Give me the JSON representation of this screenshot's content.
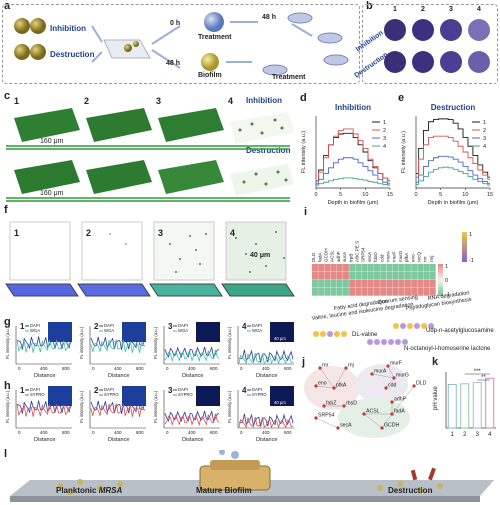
{
  "panel_labels": [
    "a",
    "b",
    "c",
    "d",
    "e",
    "f",
    "g",
    "h",
    "i",
    "j",
    "k",
    "l"
  ],
  "a": {
    "inhibition": "Inhibition",
    "destruction": "Destruction",
    "t0": "0 h",
    "t48a": "48 h",
    "t48b": "48 h",
    "treatment1": "Treatment",
    "biofilm": "Biofilm",
    "treatment2": "Treatment"
  },
  "b": {
    "cols": [
      "1",
      "2",
      "3",
      "4"
    ],
    "row1": "Inhibition",
    "row2": "Destruction"
  },
  "c": {
    "nums": [
      "1",
      "2",
      "3",
      "4"
    ],
    "inhibition": "Inhibition",
    "destruction": "Destruction",
    "scale1": "160 μm",
    "scale2": "160 μm"
  },
  "f": {
    "nums": [
      "1",
      "2",
      "3",
      "4"
    ],
    "scale": "40 μm"
  },
  "g": {
    "nums": [
      "1",
      "2",
      "3",
      "4"
    ],
    "legend": [
      "DAPI",
      "WGA"
    ],
    "ylabel": "FL intensity (a.u.)",
    "xlabel": "Distance",
    "ticks": [
      "0",
      "400",
      "800"
    ],
    "scale": "40 μm"
  },
  "h": {
    "nums": [
      "1",
      "2",
      "3",
      "4"
    ],
    "legend": [
      "DAPI",
      "SYPRO"
    ],
    "ylabel": "FL intensity (a.u.)",
    "xlabel": "Distance",
    "ticks": [
      "0",
      "400",
      "800"
    ],
    "scale": "40 μm"
  },
  "i": {
    "genes": [
      "DLD",
      "fadA",
      "GCDH",
      "ACSL",
      "adhP",
      "sucA",
      "trpB",
      "ABC.PE.S",
      "SRP54",
      "secA",
      "fdoD",
      "cdd",
      "murA",
      "murF",
      "murG",
      "pfkA",
      "eno",
      "recQ",
      "rnr",
      "rmj"
    ],
    "colorbar": [
      "1",
      "0",
      "-1"
    ],
    "colorbar2": [
      "1",
      "-1"
    ],
    "pathways": [
      "Fatty acid degradation",
      "Valine, leucine and isoleucine degradation",
      "Quorum sensing",
      "Peptidoglycan biosynthesis",
      "RNA degradation"
    ],
    "metabolites": [
      "DL-valine",
      "Udp-n-acetylglucosamine",
      "N-octanoyl-l-homoserine lactone"
    ]
  },
  "j": {
    "nodes": [
      "rnr",
      "rnj",
      "eno",
      "pfkA",
      "murA",
      "murF",
      "murG",
      "cdd",
      "DLD",
      "fabZ",
      "rbsD",
      "fadA",
      "adhP",
      "ACSL",
      "SRP54",
      "secA",
      "GCDH"
    ]
  },
  "k": {
    "ylabel": "pH value",
    "categories": [
      "1",
      "2",
      "3",
      "4"
    ],
    "sig1": "***",
    "sig2": "**"
  },
  "l": {
    "planktonic": "Planktonic ",
    "mrsa": "MRSA",
    "mature": "Mature Biofilm",
    "destruction": "Destruction"
  },
  "chart_data": [
    {
      "type": "line",
      "panel": "d",
      "title": "Inhibition",
      "xlabel": "Depth in biofilm (μm)",
      "ylabel": "FL intensity (a.u.)",
      "xlim": [
        0,
        15
      ],
      "x_ticks": [
        "0",
        "5",
        "10",
        "15"
      ],
      "x": [
        0,
        1,
        2,
        3,
        4,
        5,
        6,
        7,
        8,
        9,
        10,
        11,
        12,
        13,
        14,
        15
      ],
      "series": [
        {
          "name": "1",
          "color": "#1a1a1a",
          "values": [
            0.1,
            0.25,
            0.45,
            0.6,
            0.7,
            0.75,
            0.76,
            0.76,
            0.7,
            0.6,
            0.5,
            0.38,
            0.28,
            0.2,
            0.14,
            0.1
          ]
        },
        {
          "name": "2",
          "color": "#d9534f",
          "values": [
            0.1,
            0.22,
            0.42,
            0.6,
            0.72,
            0.8,
            0.82,
            0.82,
            0.75,
            0.66,
            0.55,
            0.4,
            0.3,
            0.2,
            0.14,
            0.1
          ]
        },
        {
          "name": "3",
          "color": "#4a67c7",
          "values": [
            0.06,
            0.12,
            0.2,
            0.28,
            0.35,
            0.4,
            0.42,
            0.42,
            0.4,
            0.35,
            0.3,
            0.24,
            0.18,
            0.12,
            0.08,
            0.06
          ]
        },
        {
          "name": "4",
          "color": "#43a58a",
          "values": [
            0.04,
            0.06,
            0.08,
            0.1,
            0.12,
            0.13,
            0.14,
            0.14,
            0.13,
            0.12,
            0.11,
            0.09,
            0.08,
            0.06,
            0.05,
            0.04
          ]
        }
      ]
    },
    {
      "type": "line",
      "panel": "e",
      "title": "Destruction",
      "xlabel": "Depth in biofilm (μm)",
      "ylabel": "FL intensity (a.u.)",
      "xlim": [
        0,
        15
      ],
      "x_ticks": [
        "0",
        "5",
        "10",
        "15"
      ],
      "x": [
        0,
        1,
        2,
        3,
        4,
        5,
        6,
        7,
        8,
        9,
        10,
        11,
        12,
        13,
        14,
        15
      ],
      "series": [
        {
          "name": "1",
          "color": "#1a1a1a",
          "values": [
            0.2,
            0.55,
            0.8,
            0.92,
            0.95,
            0.96,
            0.96,
            0.95,
            0.9,
            0.82,
            0.7,
            0.58,
            0.45,
            0.32,
            0.22,
            0.15
          ]
        },
        {
          "name": "2",
          "color": "#d9534f",
          "values": [
            0.15,
            0.4,
            0.6,
            0.7,
            0.72,
            0.72,
            0.72,
            0.7,
            0.65,
            0.58,
            0.5,
            0.42,
            0.34,
            0.25,
            0.18,
            0.12
          ]
        },
        {
          "name": "3",
          "color": "#4a67c7",
          "values": [
            0.08,
            0.18,
            0.3,
            0.38,
            0.42,
            0.44,
            0.44,
            0.43,
            0.4,
            0.36,
            0.3,
            0.24,
            0.18,
            0.13,
            0.09,
            0.06
          ]
        },
        {
          "name": "4",
          "color": "#43a58a",
          "values": [
            0.05,
            0.1,
            0.16,
            0.22,
            0.26,
            0.28,
            0.29,
            0.28,
            0.26,
            0.23,
            0.2,
            0.16,
            0.12,
            0.09,
            0.06,
            0.04
          ]
        }
      ]
    },
    {
      "type": "bar",
      "panel": "k",
      "ylabel": "pH value",
      "categories": [
        "1",
        "2",
        "3",
        "4"
      ],
      "values": [
        7.0,
        7.1,
        7.3,
        8.0
      ],
      "ylim": [
        0,
        9
      ]
    }
  ]
}
